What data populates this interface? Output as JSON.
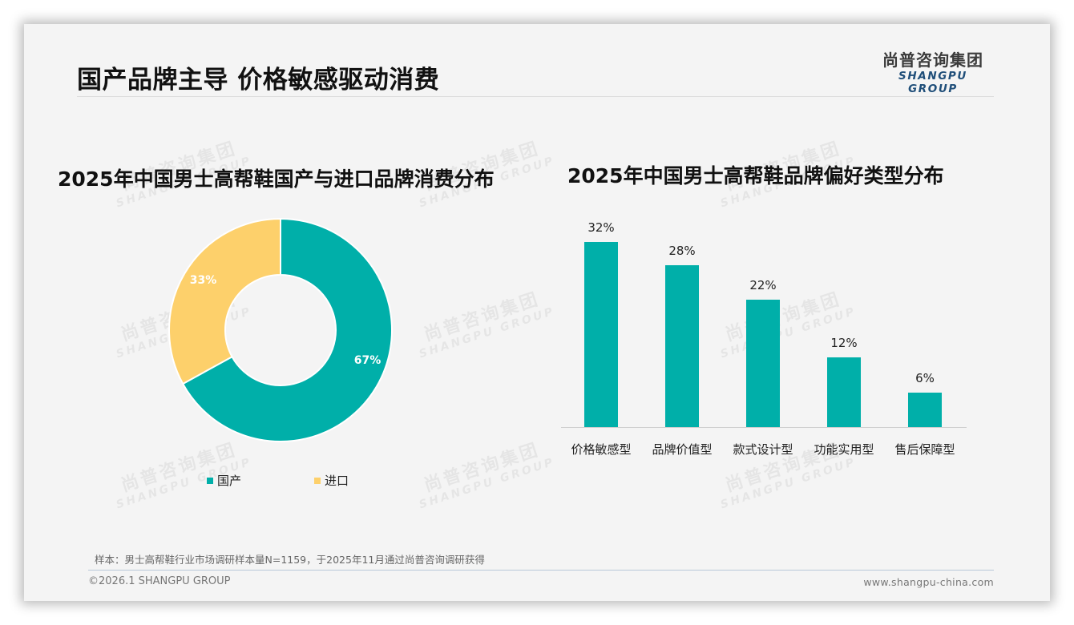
{
  "header": {
    "title": "国产品牌主导 价格敏感驱动消费",
    "logo_cn": "尚普咨询集团",
    "logo_en": "SHANGPU GROUP"
  },
  "watermark": {
    "cn": "尚普咨询集团",
    "en": "SHANGPU GROUP"
  },
  "colors": {
    "teal": "#00afa9",
    "yellow": "#fdd06b",
    "logo_blue": "#1f4e79"
  },
  "chart_data": [
    {
      "type": "pie",
      "variant": "donut",
      "title": "2025年中国男士高帮鞋国产与进口品牌消费分布",
      "categories": [
        "国产",
        "进口"
      ],
      "values": [
        67,
        33
      ],
      "labels": [
        "67%",
        "33%"
      ],
      "colors": [
        "#00afa9",
        "#fdd06b"
      ],
      "legend_position": "bottom"
    },
    {
      "type": "bar",
      "title": "2025年中国男士高帮鞋品牌偏好类型分布",
      "categories": [
        "价格敏感型",
        "品牌价值型",
        "款式设计型",
        "功能实用型",
        "售后保障型"
      ],
      "values": [
        32,
        28,
        22,
        12,
        6
      ],
      "labels": [
        "32%",
        "28%",
        "22%",
        "12%",
        "6%"
      ],
      "xlabel": "",
      "ylabel": "",
      "ylim": [
        0,
        32
      ],
      "grid": false,
      "color": "#00afa9"
    }
  ],
  "footer": {
    "note": "样本：男士高帮鞋行业市场调研样本量N=1159，于2025年11月通过尚普咨询调研获得",
    "copyright": "©2026.1 SHANGPU GROUP",
    "website": "www.shangpu-china.com"
  }
}
